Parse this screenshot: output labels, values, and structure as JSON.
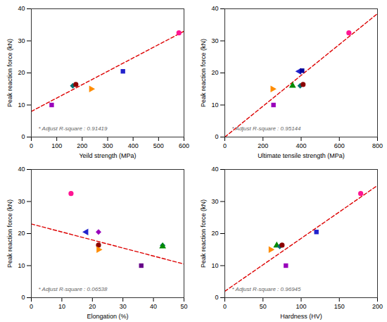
{
  "chart_data": [
    {
      "type": "scatter",
      "xlabel": "Yeild strength (MPa)",
      "ylabel": "Peak reaction force (kN)",
      "xlim": [
        0,
        600
      ],
      "ylim": [
        0,
        40
      ],
      "xticks": [
        0,
        100,
        200,
        300,
        400,
        500,
        600
      ],
      "yticks": [
        0,
        10,
        20,
        30,
        40
      ],
      "annotation": "* Adjust R-square : 0.91419",
      "series": [
        {
          "type": "line",
          "color": "#dd0000",
          "line_style": "dashed",
          "x": [
            0,
            600
          ],
          "values": [
            8.0,
            33.0
          ]
        },
        {
          "type": "scatter",
          "color": "#9900bb",
          "marker": "square",
          "x": [
            80
          ],
          "values": [
            10.0
          ]
        },
        {
          "type": "scatter",
          "color": "#007070",
          "marker": "diamond",
          "x": [
            163
          ],
          "values": [
            16.0
          ]
        },
        {
          "type": "scatter",
          "color": "#8B0000",
          "marker": "circle",
          "x": [
            175
          ],
          "values": [
            16.4
          ]
        },
        {
          "type": "scatter",
          "color": "#FF8C00",
          "marker": "triangle-right",
          "x": [
            235
          ],
          "values": [
            15.0
          ]
        },
        {
          "type": "scatter",
          "color": "#2222cc",
          "marker": "square",
          "x": [
            360
          ],
          "values": [
            20.5
          ]
        },
        {
          "type": "scatter",
          "color": "#ff1493",
          "marker": "circle",
          "x": [
            580
          ],
          "values": [
            32.5
          ]
        }
      ]
    },
    {
      "type": "scatter",
      "xlabel": "Ultimate tensile strength (MPa)",
      "ylabel": "Peak reaction force (kN)",
      "xlim": [
        0,
        800
      ],
      "ylim": [
        0,
        40
      ],
      "xticks": [
        0,
        200,
        400,
        600,
        800
      ],
      "yticks": [
        0,
        10,
        20,
        30,
        40
      ],
      "annotation": "* Adjust R-square : 0.95144",
      "series": [
        {
          "type": "line",
          "color": "#dd0000",
          "line_style": "dashed",
          "x": [
            0,
            800
          ],
          "values": [
            0.0,
            38.5
          ]
        },
        {
          "type": "scatter",
          "color": "#9900bb",
          "marker": "square",
          "x": [
            255
          ],
          "values": [
            10.0
          ]
        },
        {
          "type": "scatter",
          "color": "#FF8C00",
          "marker": "triangle-right",
          "x": [
            250
          ],
          "values": [
            15.0
          ]
        },
        {
          "type": "scatter",
          "color": "#008B00",
          "marker": "triangle-up",
          "x": [
            355
          ],
          "values": [
            16.0
          ]
        },
        {
          "type": "scatter",
          "color": "#007070",
          "marker": "diamond",
          "x": [
            395
          ],
          "values": [
            16.0
          ]
        },
        {
          "type": "scatter",
          "color": "#8B0000",
          "marker": "circle",
          "x": [
            410
          ],
          "values": [
            16.4
          ]
        },
        {
          "type": "scatter",
          "color": "#2222cc",
          "marker": "triangle-left",
          "x": [
            390
          ],
          "values": [
            20.5
          ]
        },
        {
          "type": "scatter",
          "color": "#000099",
          "marker": "square",
          "x": [
            405
          ],
          "values": [
            20.7
          ]
        },
        {
          "type": "scatter",
          "color": "#ff1493",
          "marker": "circle",
          "x": [
            650
          ],
          "values": [
            32.5
          ]
        }
      ]
    },
    {
      "type": "scatter",
      "xlabel": "Elongation (%)",
      "ylabel": "Peak reaction force (kN)",
      "xlim": [
        0,
        50
      ],
      "ylim": [
        0,
        40
      ],
      "xticks": [
        0,
        10,
        20,
        30,
        40,
        50
      ],
      "yticks": [
        0,
        10,
        20,
        30,
        40
      ],
      "annotation": "* Adjust R-square : 0.06538",
      "series": [
        {
          "type": "line",
          "color": "#dd0000",
          "line_style": "dashed",
          "x": [
            0,
            50
          ],
          "values": [
            23.0,
            10.5
          ]
        },
        {
          "type": "scatter",
          "color": "#ff1493",
          "marker": "circle",
          "x": [
            13
          ],
          "values": [
            32.5
          ]
        },
        {
          "type": "scatter",
          "color": "#2222cc",
          "marker": "triangle-left",
          "x": [
            18
          ],
          "values": [
            20.5
          ]
        },
        {
          "type": "scatter",
          "color": "#9900bb",
          "marker": "diamond",
          "x": [
            22
          ],
          "values": [
            20.5
          ]
        },
        {
          "type": "scatter",
          "color": "#8B0000",
          "marker": "circle",
          "x": [
            22
          ],
          "values": [
            16.4
          ]
        },
        {
          "type": "scatter",
          "color": "#FF8C00",
          "marker": "triangle-right",
          "x": [
            22
          ],
          "values": [
            15.0
          ]
        },
        {
          "type": "scatter",
          "color": "#660088",
          "marker": "square",
          "x": [
            36
          ],
          "values": [
            10.0
          ]
        },
        {
          "type": "scatter",
          "color": "#007070",
          "marker": "diamond",
          "x": [
            43
          ],
          "values": [
            16.3
          ]
        },
        {
          "type": "scatter",
          "color": "#008B00",
          "marker": "triangle-up",
          "x": [
            43
          ],
          "values": [
            16.0
          ]
        }
      ]
    },
    {
      "type": "scatter",
      "xlabel": "Hardness (HV)",
      "ylabel": "Peak reaction force (kN)",
      "xlim": [
        0,
        200
      ],
      "ylim": [
        0,
        40
      ],
      "xticks": [
        0,
        50,
        100,
        150,
        200
      ],
      "yticks": [
        0,
        10,
        20,
        30,
        40
      ],
      "annotation": "* Adjust R-square : 0.96945",
      "series": [
        {
          "type": "line",
          "color": "#dd0000",
          "line_style": "dashed",
          "x": [
            0,
            200
          ],
          "values": [
            2.0,
            35.0
          ]
        },
        {
          "type": "scatter",
          "color": "#FF8C00",
          "marker": "triangle-right",
          "x": [
            60
          ],
          "values": [
            15.0
          ]
        },
        {
          "type": "scatter",
          "color": "#008B00",
          "marker": "triangle-up",
          "x": [
            68
          ],
          "values": [
            16.3
          ]
        },
        {
          "type": "scatter",
          "color": "#007070",
          "marker": "diamond",
          "x": [
            72
          ],
          "values": [
            16.0
          ]
        },
        {
          "type": "scatter",
          "color": "#8B0000",
          "marker": "circle",
          "x": [
            75
          ],
          "values": [
            16.4
          ]
        },
        {
          "type": "scatter",
          "color": "#9900bb",
          "marker": "square",
          "x": [
            80
          ],
          "values": [
            10.0
          ]
        },
        {
          "type": "scatter",
          "color": "#2222cc",
          "marker": "square",
          "x": [
            120
          ],
          "values": [
            20.5
          ]
        },
        {
          "type": "scatter",
          "color": "#ff1493",
          "marker": "circle",
          "x": [
            178
          ],
          "values": [
            32.5
          ]
        }
      ]
    }
  ]
}
